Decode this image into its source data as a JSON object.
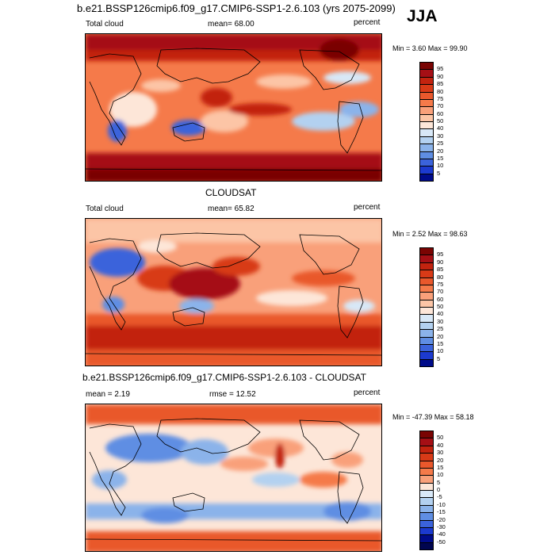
{
  "main_title": "b.e21.BSSP126cmip6.f09_g17.CMIP6-SSP1-2.6.103 (yrs 2075-2099)",
  "season": "JJA",
  "panels": [
    {
      "header": "",
      "left": "Total cloud",
      "mean": "mean=  68.00",
      "units": "percent",
      "minmax": "Min =   3.60 Max =  99.90"
    },
    {
      "header": "CLOUDSAT",
      "left": "Total cloud",
      "mean": "mean=  65.82",
      "units": "percent",
      "minmax": "Min =   2.52 Max =  98.63"
    },
    {
      "header": "b.e21.BSSP126cmip6.f09_g17.CMIP6-SSP1-2.6.103 - CLOUDSAT",
      "left": "mean =   2.19",
      "mean": "rmse =  12.52",
      "units": "percent",
      "minmax": "Min = -47.39 Max =  58.18"
    }
  ],
  "colorbars": {
    "absolute": {
      "labels": [
        "95",
        "90",
        "85",
        "80",
        "75",
        "70",
        "60",
        "50",
        "40",
        "30",
        "25",
        "20",
        "15",
        "10",
        "5"
      ],
      "colors": [
        "#7a0403",
        "#a50f15",
        "#c2230f",
        "#d83a17",
        "#e9582c",
        "#f57a4a",
        "#f9a07a",
        "#fcc5a6",
        "#fde6d8",
        "#d8e8f7",
        "#b3d1f0",
        "#8bb3ea",
        "#5f8ee3",
        "#3b63db",
        "#1c3acf",
        "#000b8a"
      ]
    },
    "difference": {
      "labels": [
        "50",
        "40",
        "30",
        "20",
        "15",
        "10",
        "5",
        "0",
        "-5",
        "-10",
        "-15",
        "-20",
        "-30",
        "-40",
        "-50"
      ],
      "colors": [
        "#7a0403",
        "#a50f15",
        "#c2230f",
        "#d83a17",
        "#e9582c",
        "#f57a4a",
        "#f9a07a",
        "#fde6d8",
        "#d8e8f7",
        "#b3d1f0",
        "#8bb3ea",
        "#5f8ee3",
        "#3b63db",
        "#1c3acf",
        "#000b8a",
        "#00054f"
      ]
    }
  }
}
